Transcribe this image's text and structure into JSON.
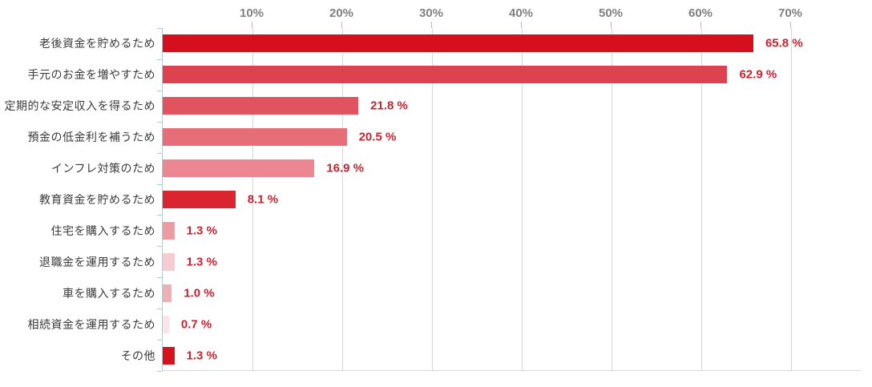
{
  "chart_data": {
    "type": "bar",
    "orientation": "horizontal",
    "title": "",
    "xlabel": "",
    "ylabel": "",
    "xlim": [
      0,
      70
    ],
    "x_tick_values": [
      10,
      20,
      30,
      40,
      50,
      60,
      70
    ],
    "x_tick_labels": [
      "10%",
      "20%",
      "30%",
      "40%",
      "50%",
      "60%",
      "70%"
    ],
    "grid": true,
    "legend": false,
    "categories": [
      "老後資金を貯めるため",
      "手元のお金を増やすため",
      "定期的な安定収入を得るため",
      "預金の低金利を補うため",
      "インフレ対策のため",
      "教育資金を貯めるため",
      "住宅を購入するため",
      "退職金を運用するため",
      "車を購入するため",
      "相続資金を運用するため",
      "その他"
    ],
    "values": [
      65.8,
      62.9,
      21.8,
      20.5,
      16.9,
      8.1,
      1.3,
      1.3,
      1.0,
      0.7,
      1.3
    ],
    "value_labels": [
      "65.8 %",
      "62.9 %",
      "21.8 %",
      "20.5 %",
      "16.9 %",
      "8.1 %",
      "1.3 %",
      "1.3 %",
      "1.0 %",
      "0.7 %",
      "1.3 %"
    ],
    "bar_colors": [
      "#d50f1e",
      "#dc434e",
      "#e0535f",
      "#e66e78",
      "#ec8791",
      "#da2430",
      "#ef9ba2",
      "#f7cbd0",
      "#f0aeb5",
      "#fae4e6",
      "#d6121f"
    ]
  },
  "colors": {
    "value_label": "#c7232f",
    "axis_label": "#808080",
    "category_label": "#3a3a3a",
    "gridline": "#d6d6d6",
    "y_axis_line": "#b7c9d1",
    "background": "#ffffff"
  }
}
